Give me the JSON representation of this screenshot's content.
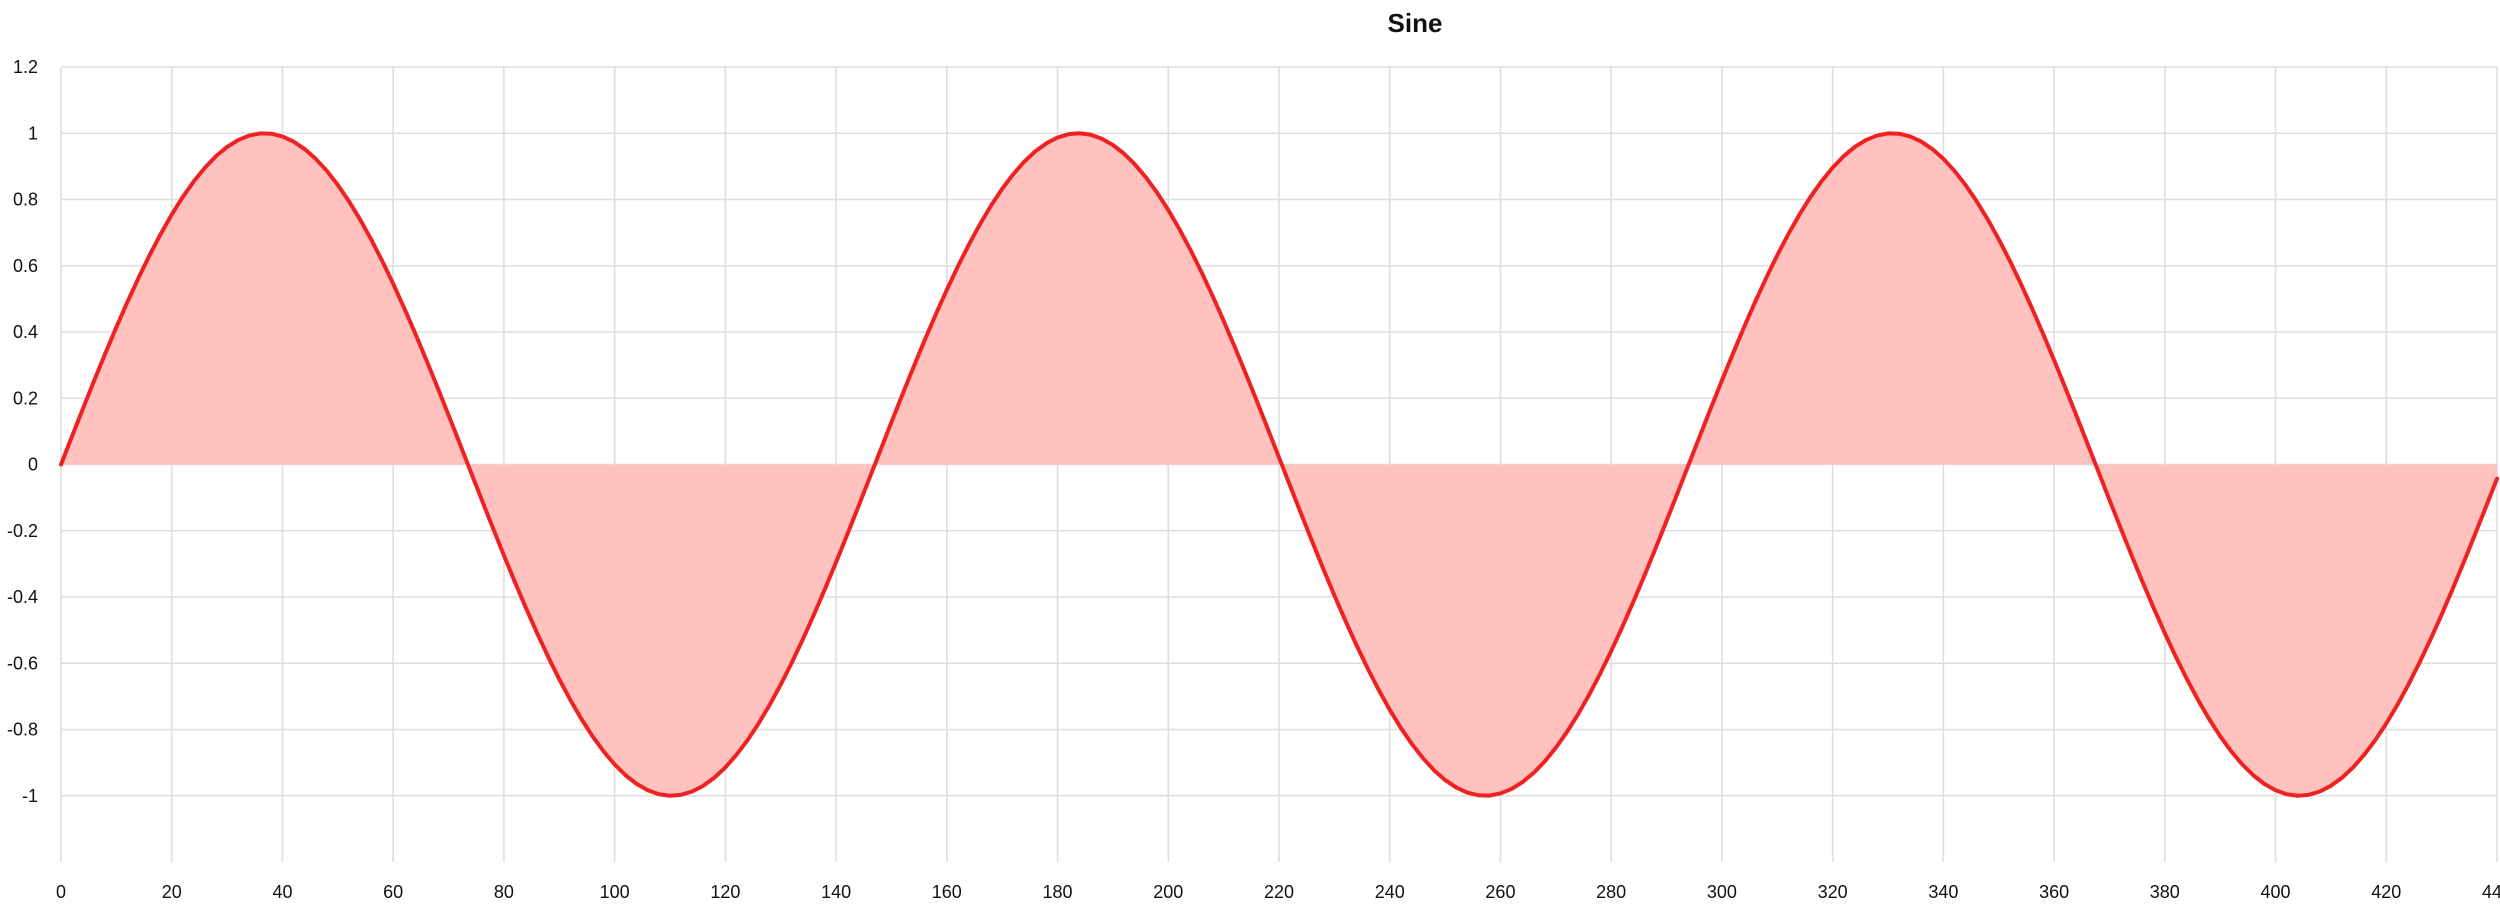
{
  "chart_data": {
    "type": "area",
    "title": "Sine",
    "xlabel": "",
    "ylabel": "",
    "xlim": [
      0,
      440
    ],
    "ylim": [
      -1.2,
      1.2
    ],
    "x_ticks": [
      "0",
      "20",
      "40",
      "60",
      "80",
      "100",
      "120",
      "140",
      "160",
      "180",
      "200",
      "220",
      "240",
      "260",
      "280",
      "300",
      "320",
      "340",
      "360",
      "380",
      "400",
      "420",
      "440"
    ],
    "y_ticks": [
      "1.2",
      "1",
      "0.8",
      "0.6",
      "0.4",
      "0.2",
      "0",
      "-0.2",
      "-0.4",
      "-0.6",
      "-0.8",
      "-1"
    ],
    "grid": true,
    "x_step": 2,
    "period": 147,
    "series": [
      {
        "function": "sin",
        "stroke_color": "#ee2222",
        "fill_color": "#ffbfbc",
        "x": [
          0,
          36.75,
          73.5,
          110.25,
          147,
          183.75,
          220.5,
          257.25,
          294,
          330.75,
          367.5,
          404.25,
          440
        ],
        "values": [
          0,
          1,
          0,
          -1,
          0,
          1,
          0,
          -1,
          0,
          1,
          0,
          -1,
          0.11
        ]
      }
    ]
  }
}
